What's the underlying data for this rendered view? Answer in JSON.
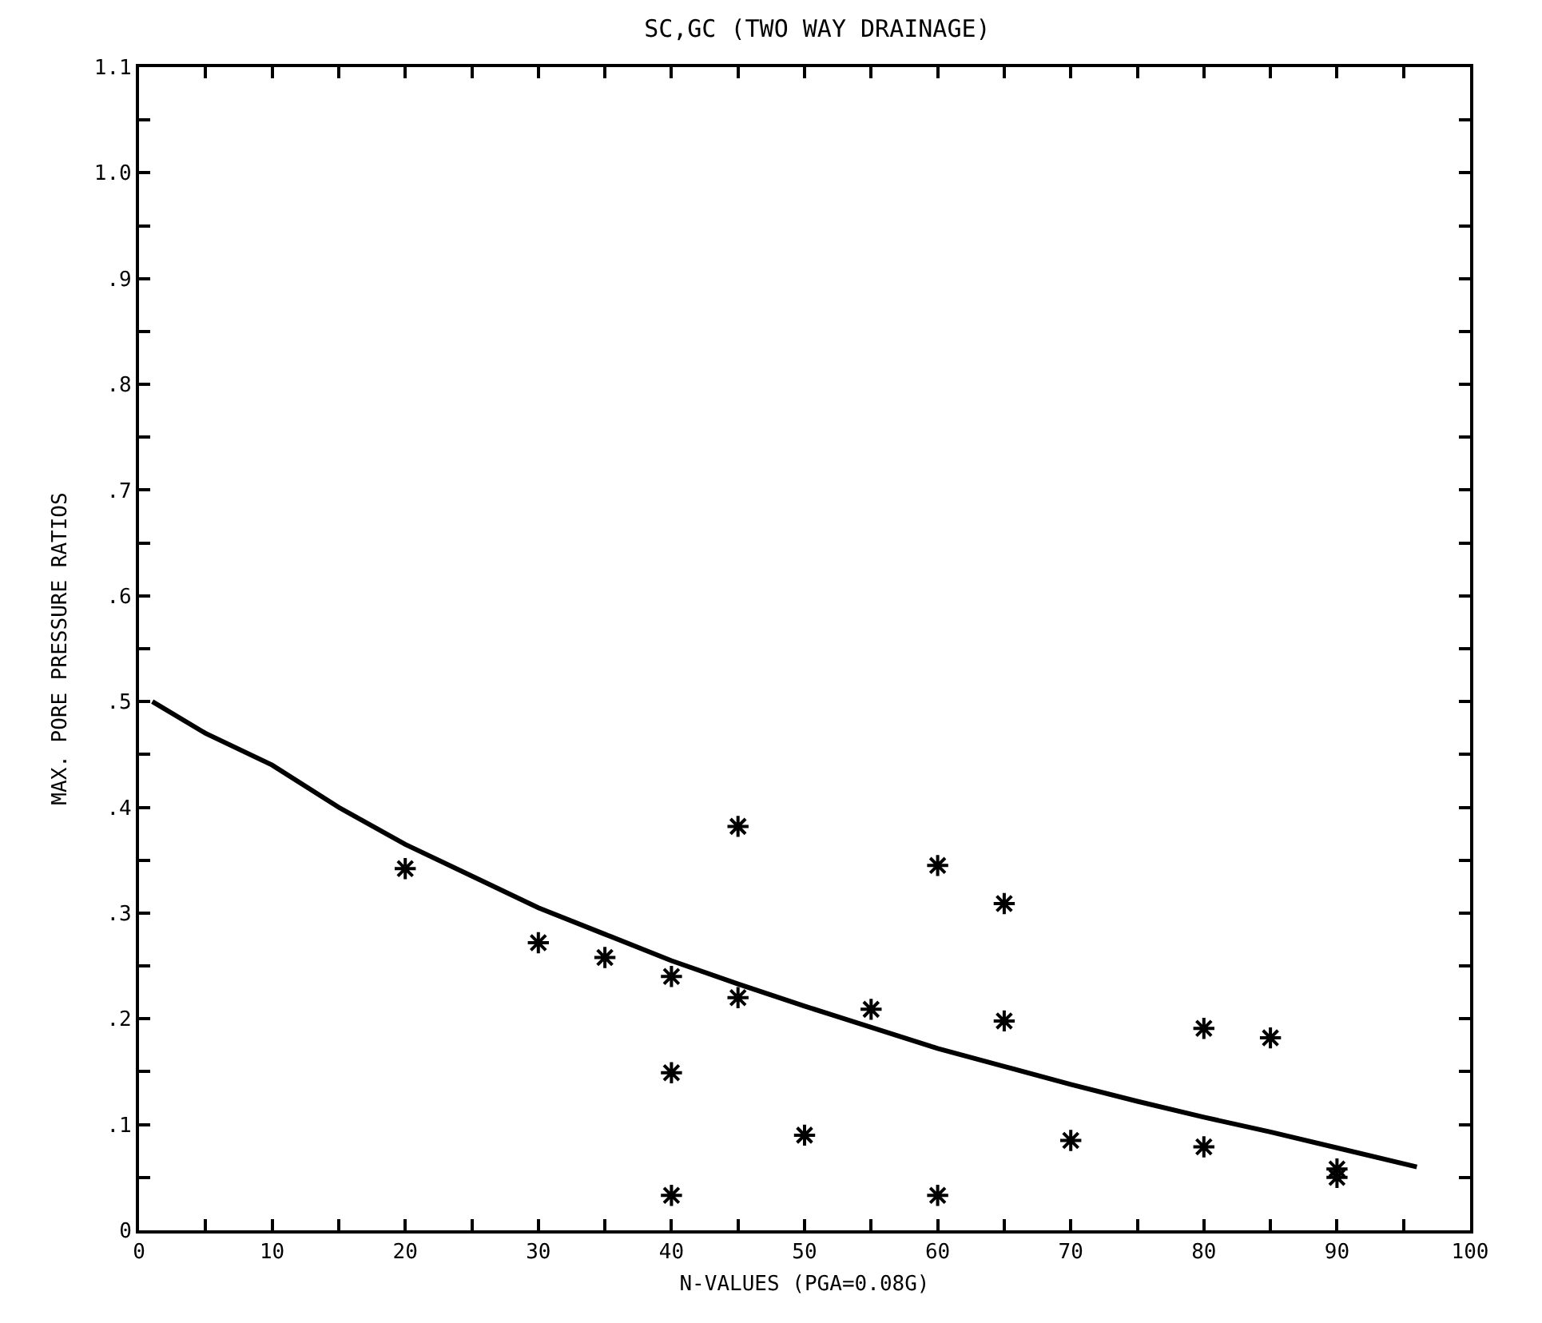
{
  "chart_data": {
    "type": "scatter",
    "title": "SC,GC (TWO WAY DRAINAGE)",
    "xlabel": "N-VALUES (PGA=0.08G)",
    "ylabel": "MAX. PORE PRESSURE RATIOS",
    "series": [
      {
        "color": "#000000",
        "marker": "cross",
        "x": [
          20,
          30,
          35,
          40,
          40,
          40,
          45,
          45,
          50,
          55,
          60,
          60,
          65,
          65,
          70,
          80,
          80,
          85,
          90,
          90
        ],
        "values": [
          0.342,
          0.272,
          0.258,
          0.24,
          0.149,
          0.033,
          0.382,
          0.22,
          0.09,
          0.209,
          0.345,
          0.033,
          0.309,
          0.198,
          0.085,
          0.191,
          0.079,
          0.182,
          0.058,
          0.05
        ]
      },
      {
        "type": "line",
        "color": "#000000",
        "line_style": "solid",
        "marker": "none",
        "x": [
          1,
          5,
          10,
          15,
          20,
          25,
          30,
          35,
          40,
          45,
          50,
          55,
          60,
          65,
          70,
          75,
          80,
          85,
          90,
          96
        ],
        "values": [
          0.5,
          0.47,
          0.44,
          0.4,
          0.365,
          0.335,
          0.305,
          0.28,
          0.255,
          0.233,
          0.212,
          0.192,
          0.172,
          0.155,
          0.138,
          0.122,
          0.107,
          0.093,
          0.078,
          0.06
        ]
      }
    ],
    "xlim": [
      0,
      100
    ],
    "ylim": [
      0,
      1.1
    ],
    "xticks": [
      0,
      {
        "value": 5,
        "label": null
      },
      10,
      {
        "value": 15,
        "label": null
      },
      20,
      {
        "value": 25,
        "label": null
      },
      30,
      {
        "value": 35,
        "label": null
      },
      40,
      {
        "value": 45,
        "label": null
      },
      50,
      {
        "value": 55,
        "label": null
      },
      60,
      {
        "value": 65,
        "label": null
      },
      70,
      {
        "value": 75,
        "label": null
      },
      80,
      {
        "value": 85,
        "label": null
      },
      90,
      {
        "value": 95,
        "label": null
      },
      100
    ],
    "yticks": [
      0,
      {
        "value": 0.05,
        "label": null
      },
      {
        "value": 0.1,
        "label": ".1"
      },
      {
        "value": 0.15,
        "label": null
      },
      {
        "value": 0.2,
        "label": ".2"
      },
      {
        "value": 0.25,
        "label": null
      },
      {
        "value": 0.3,
        "label": ".3"
      },
      {
        "value": 0.35,
        "label": null
      },
      {
        "value": 0.4,
        "label": ".4"
      },
      {
        "value": 0.45,
        "label": null
      },
      {
        "value": 0.5,
        "label": ".5"
      },
      {
        "value": 0.55,
        "label": null
      },
      {
        "value": 0.6,
        "label": ".6"
      },
      {
        "value": 0.65,
        "label": null
      },
      {
        "value": 0.7,
        "label": ".7"
      },
      {
        "value": 0.75,
        "label": null
      },
      {
        "value": 0.8,
        "label": ".8"
      },
      {
        "value": 0.85,
        "label": null
      },
      {
        "value": 0.9,
        "label": ".9"
      },
      {
        "value": 0.95,
        "label": null
      },
      {
        "value": 1,
        "label": "1.0"
      },
      {
        "value": 1.05,
        "label": null
      },
      1.1
    ],
    "grid": false
  }
}
